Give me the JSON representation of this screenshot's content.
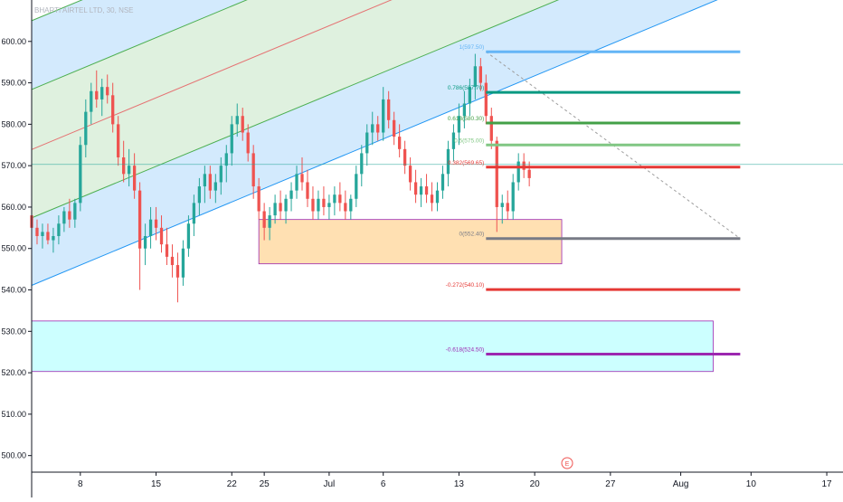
{
  "title": "BHARTI AIRTEL LTD, 30, NSE",
  "chart_data": {
    "type": "candlestick",
    "yaxis": {
      "ticks": [
        "600.00",
        "590.00",
        "580.00",
        "570.00",
        "560.00",
        "550.00",
        "540.00",
        "530.00",
        "520.00",
        "510.00",
        "500.00"
      ],
      "tick_values": [
        600,
        590,
        580,
        570,
        560,
        550,
        540,
        530,
        520,
        510,
        500
      ],
      "range": [
        496,
        610
      ]
    },
    "xaxis": {
      "ticks": [
        "8",
        "15",
        "22",
        "25",
        "Jul",
        "6",
        "13",
        "20",
        "27",
        "Aug",
        "10",
        "17"
      ],
      "tick_days": [
        8,
        15,
        22,
        25,
        31,
        36,
        43,
        50,
        57,
        63.5,
        70,
        77
      ],
      "range": [
        3.5,
        78.5
      ]
    },
    "current_price": 570.3,
    "fibonacci": [
      {
        "label": "1(597.50)",
        "value": 597.5,
        "color": "#64b5f6"
      },
      {
        "label": "0.786(587.70)",
        "value": 587.7,
        "color": "#089981"
      },
      {
        "label": "0.618(580.30)",
        "value": 580.3,
        "color": "#43a047"
      },
      {
        "label": "0.5(575.00)",
        "value": 575.0,
        "color": "#81c784"
      },
      {
        "label": "0.382(569.65)",
        "value": 569.65,
        "color": "#e53935"
      },
      {
        "label": "0(552.40)",
        "value": 552.4,
        "color": "#787b86"
      },
      {
        "label": "-0.272(540.10)",
        "value": 540.1,
        "color": "#e53935"
      },
      {
        "label": "-0.618(524.50)",
        "value": 524.5,
        "color": "#9c27b0"
      }
    ],
    "fib_x_range": [
      45.5,
      69
    ],
    "zones": [
      {
        "x": [
          24.5,
          52.5
        ],
        "y": [
          546.3,
          557.0
        ],
        "fill": "#ffe0b2",
        "stroke": "#9c27b0"
      },
      {
        "x": [
          3.5,
          66.5
        ],
        "y": [
          520.3,
          532.5
        ],
        "fill": "#ccffff",
        "stroke": "#9c27b0"
      }
    ],
    "channel": {
      "start_day": 3.5,
      "end_day": 78.5,
      "upper": [
        588.4,
        670.0
      ],
      "middle": [
        573.9,
        655.4
      ],
      "lower": [
        557.4,
        638.5
      ],
      "bottom": [
        541.1,
        622.7
      ],
      "top": [
        605.0,
        686.0
      ]
    },
    "projection_line": {
      "x": [
        45.5,
        69
      ],
      "y": [
        597.5,
        552.4
      ]
    },
    "event_marker": {
      "label": "E",
      "day": 53
    },
    "candles": [
      [
        3.5,
        558,
        560,
        552,
        555
      ],
      [
        4.0,
        555,
        557,
        551,
        553
      ],
      [
        4.5,
        553,
        556,
        550,
        554
      ],
      [
        5.0,
        554,
        556,
        551,
        552
      ],
      [
        5.5,
        552,
        555,
        549,
        553
      ],
      [
        6.0,
        553,
        558,
        551,
        556
      ],
      [
        6.5,
        556,
        560,
        554,
        559
      ],
      [
        7.0,
        559,
        562,
        555,
        557
      ],
      [
        7.5,
        557,
        562,
        555,
        561
      ],
      [
        8.0,
        561,
        577,
        559,
        575
      ],
      [
        8.5,
        575,
        586,
        572,
        583
      ],
      [
        9.0,
        583,
        590,
        580,
        588
      ],
      [
        9.5,
        588,
        593,
        584,
        586
      ],
      [
        10.0,
        586,
        591,
        582,
        589
      ],
      [
        10.5,
        589,
        592,
        585,
        587
      ],
      [
        11.0,
        587,
        590,
        578,
        580
      ],
      [
        11.5,
        580,
        582,
        570,
        572
      ],
      [
        12.0,
        572,
        576,
        566,
        568
      ],
      [
        12.5,
        568,
        574,
        565,
        570
      ],
      [
        13.0,
        570,
        573,
        562,
        564
      ],
      [
        13.5,
        564,
        566,
        540,
        550
      ],
      [
        14.0,
        550,
        556,
        546,
        553
      ],
      [
        14.5,
        553,
        560,
        550,
        557
      ],
      [
        15.0,
        557,
        560,
        552,
        555
      ],
      [
        15.5,
        555,
        558,
        549,
        551
      ],
      [
        16.0,
        551,
        555,
        546,
        548
      ],
      [
        16.5,
        548,
        551,
        543,
        546
      ],
      [
        17.0,
        546,
        549,
        537,
        543
      ],
      [
        17.5,
        543,
        552,
        541,
        550
      ],
      [
        18.0,
        550,
        558,
        548,
        556
      ],
      [
        18.5,
        556,
        563,
        553,
        561
      ],
      [
        19.0,
        561,
        567,
        558,
        565
      ],
      [
        19.5,
        565,
        570,
        561,
        568
      ],
      [
        20.0,
        568,
        570,
        562,
        564
      ],
      [
        20.5,
        564,
        568,
        561,
        566
      ],
      [
        21.0,
        566,
        572,
        563,
        570
      ],
      [
        21.5,
        570,
        575,
        566,
        573
      ],
      [
        22.0,
        573,
        582,
        570,
        580
      ],
      [
        22.5,
        580,
        585,
        577,
        582
      ],
      [
        23.0,
        582,
        584,
        576,
        578
      ],
      [
        23.5,
        578,
        580,
        571,
        573
      ],
      [
        24.0,
        573,
        575,
        562,
        565
      ],
      [
        24.5,
        565,
        567,
        557,
        559
      ],
      [
        25.0,
        559,
        561,
        552,
        555
      ],
      [
        25.5,
        555,
        560,
        552,
        558
      ],
      [
        26.0,
        558,
        563,
        556,
        561
      ],
      [
        26.5,
        561,
        564,
        557,
        559
      ],
      [
        27.0,
        559,
        563,
        556,
        562
      ],
      [
        27.5,
        562,
        566,
        559,
        564
      ],
      [
        28.0,
        564,
        570,
        562,
        568
      ],
      [
        28.5,
        568,
        572,
        564,
        566
      ],
      [
        29.0,
        566,
        569,
        560,
        562
      ],
      [
        29.5,
        562,
        565,
        557,
        559
      ],
      [
        30.0,
        559,
        564,
        557,
        562
      ],
      [
        30.5,
        562,
        565,
        558,
        560
      ],
      [
        31.0,
        560,
        563,
        557,
        561
      ],
      [
        31.5,
        561,
        565,
        558,
        563
      ],
      [
        32.0,
        563,
        566,
        559,
        561
      ],
      [
        32.5,
        561,
        564,
        557,
        559
      ],
      [
        33.0,
        559,
        563,
        557,
        562
      ],
      [
        33.5,
        562,
        570,
        560,
        568
      ],
      [
        34.0,
        568,
        575,
        565,
        573
      ],
      [
        34.5,
        573,
        580,
        570,
        578
      ],
      [
        35.0,
        578,
        583,
        575,
        580
      ],
      [
        35.5,
        580,
        582,
        576,
        578
      ],
      [
        36.0,
        578,
        589,
        576,
        586
      ],
      [
        36.5,
        586,
        588,
        579,
        581
      ],
      [
        37.0,
        581,
        583,
        575,
        577
      ],
      [
        37.5,
        577,
        580,
        572,
        574
      ],
      [
        38.0,
        574,
        576,
        568,
        570
      ],
      [
        38.5,
        570,
        572,
        564,
        566
      ],
      [
        39.0,
        566,
        569,
        561,
        563
      ],
      [
        39.5,
        563,
        567,
        560,
        565
      ],
      [
        40.0,
        565,
        568,
        561,
        563
      ],
      [
        40.5,
        563,
        566,
        559,
        561
      ],
      [
        41.0,
        561,
        566,
        559,
        564
      ],
      [
        41.5,
        564,
        570,
        562,
        568
      ],
      [
        42.0,
        568,
        576,
        565,
        574
      ],
      [
        42.5,
        574,
        580,
        571,
        578
      ],
      [
        43.0,
        578,
        585,
        575,
        582
      ],
      [
        43.5,
        582,
        588,
        579,
        585
      ],
      [
        44.0,
        585,
        591,
        582,
        589
      ],
      [
        44.5,
        589,
        597,
        586,
        594
      ],
      [
        45.0,
        594,
        596,
        588,
        590
      ],
      [
        45.5,
        590,
        592,
        580,
        582
      ],
      [
        46.0,
        582,
        584,
        574,
        576
      ],
      [
        46.5,
        576,
        577,
        554,
        560
      ],
      [
        47.0,
        560,
        563,
        556,
        561
      ],
      [
        47.5,
        561,
        564,
        557,
        559
      ],
      [
        48.0,
        559,
        568,
        557,
        566
      ],
      [
        48.5,
        566,
        573,
        564,
        571
      ],
      [
        49.0,
        571,
        573,
        567,
        569
      ],
      [
        49.5,
        569,
        571,
        565,
        567
      ]
    ]
  }
}
